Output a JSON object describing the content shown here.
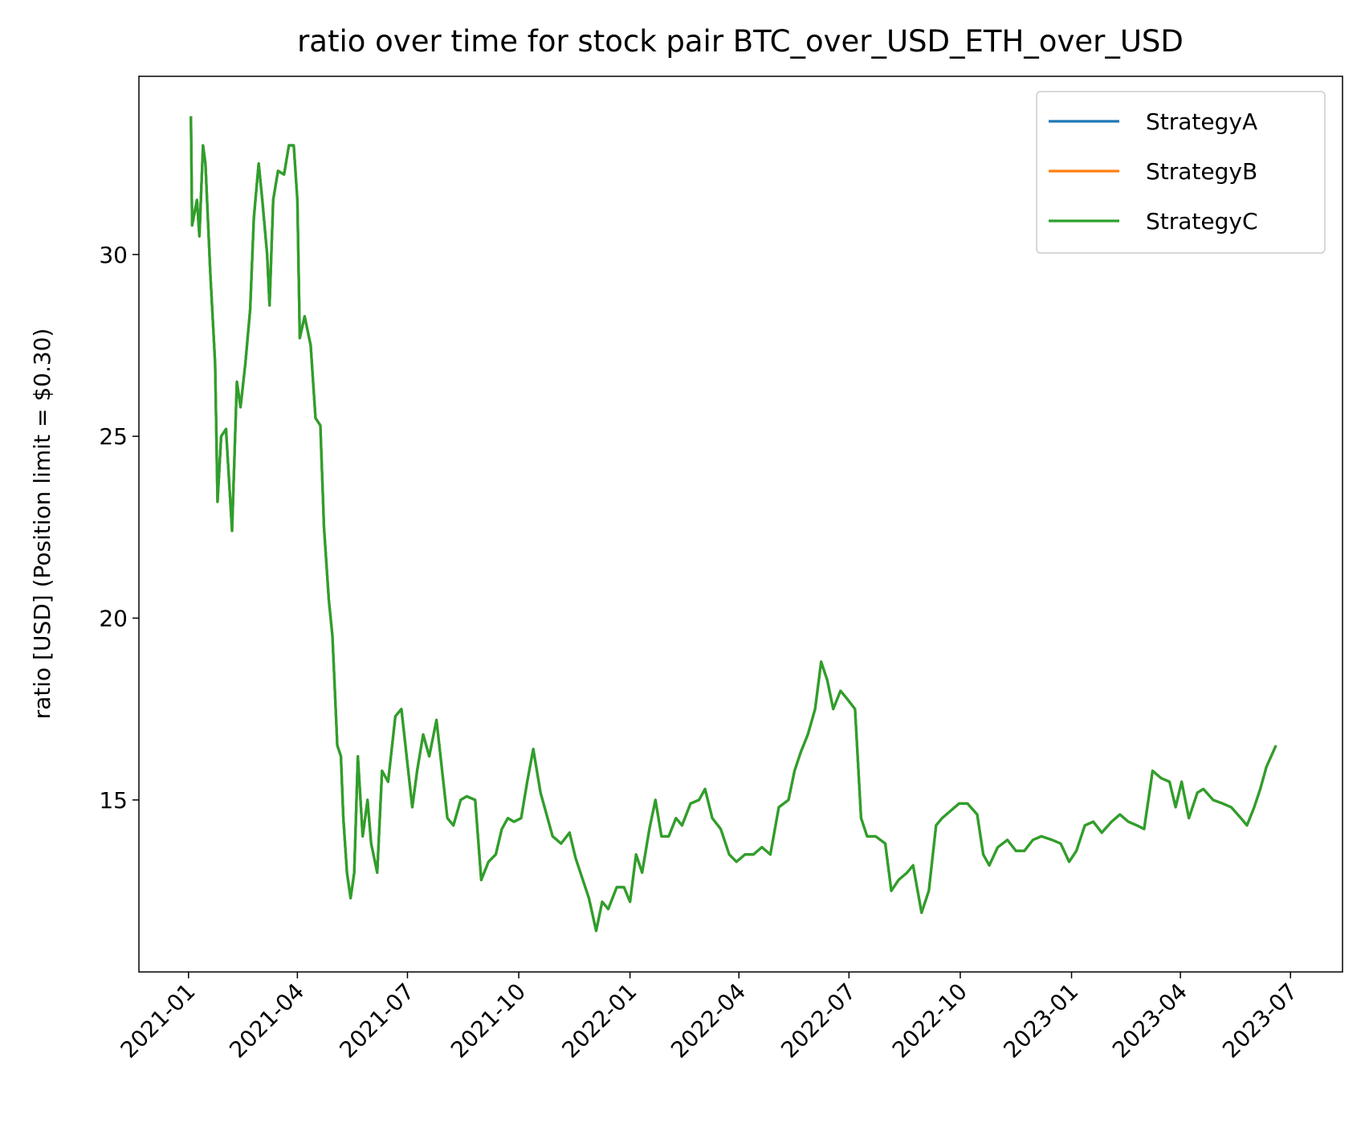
{
  "chart_data": {
    "type": "line",
    "title": "ratio over time for stock pair BTC_over_USD_ETH_over_USD",
    "y_label": "ratio [USD] (Position limit = $0.30)",
    "xlim": [
      "2020-11-21",
      "2023-08-13"
    ],
    "xticks": [
      {
        "value": "2021-01-01",
        "label": "2021-01"
      },
      {
        "value": "2021-04-01",
        "label": "2021-04"
      },
      {
        "value": "2021-07-01",
        "label": "2021-07"
      },
      {
        "value": "2021-10-01",
        "label": "2021-10"
      },
      {
        "value": "2022-01-01",
        "label": "2022-01"
      },
      {
        "value": "2022-04-01",
        "label": "2022-04"
      },
      {
        "value": "2022-07-01",
        "label": "2022-07"
      },
      {
        "value": "2022-10-01",
        "label": "2022-10"
      },
      {
        "value": "2023-01-01",
        "label": "2023-01"
      },
      {
        "value": "2023-04-01",
        "label": "2023-04"
      },
      {
        "value": "2023-07-01",
        "label": "2023-07"
      }
    ],
    "ylim": [
      10.27,
      34.9
    ],
    "yticks": [
      15,
      20,
      25,
      30
    ],
    "grid": false,
    "legend": "upper right",
    "x": [
      "2021-01-03",
      "2021-01-04",
      "2021-01-08",
      "2021-01-10",
      "2021-01-13",
      "2021-01-15",
      "2021-01-19",
      "2021-01-23",
      "2021-01-25",
      "2021-01-28",
      "2021-02-01",
      "2021-02-06",
      "2021-02-10",
      "2021-02-13",
      "2021-02-17",
      "2021-02-21",
      "2021-02-24",
      "2021-02-28",
      "2021-03-03",
      "2021-03-07",
      "2021-03-09",
      "2021-03-12",
      "2021-03-16",
      "2021-03-21",
      "2021-03-25",
      "2021-03-29",
      "2021-04-01",
      "2021-04-03",
      "2021-04-07",
      "2021-04-12",
      "2021-04-16",
      "2021-04-20",
      "2021-04-23",
      "2021-04-27",
      "2021-04-30",
      "2021-05-04",
      "2021-05-07",
      "2021-05-09",
      "2021-05-12",
      "2021-05-15",
      "2021-05-18",
      "2021-05-21",
      "2021-05-25",
      "2021-05-29",
      "2021-06-01",
      "2021-06-06",
      "2021-06-10",
      "2021-06-15",
      "2021-06-21",
      "2021-06-26",
      "2021-06-30",
      "2021-07-05",
      "2021-07-09",
      "2021-07-14",
      "2021-07-19",
      "2021-07-25",
      "2021-07-29",
      "2021-08-03",
      "2021-08-08",
      "2021-08-14",
      "2021-08-19",
      "2021-08-26",
      "2021-08-31",
      "2021-09-06",
      "2021-09-12",
      "2021-09-17",
      "2021-09-22",
      "2021-09-27",
      "2021-10-03",
      "2021-10-08",
      "2021-10-13",
      "2021-10-19",
      "2021-10-24",
      "2021-10-29",
      "2021-11-05",
      "2021-11-12",
      "2021-11-17",
      "2021-11-23",
      "2021-11-28",
      "2021-12-04",
      "2021-12-09",
      "2021-12-14",
      "2021-12-21",
      "2021-12-27",
      "2022-01-01",
      "2022-01-06",
      "2022-01-11",
      "2022-01-17",
      "2022-01-22",
      "2022-01-27",
      "2022-02-02",
      "2022-02-08",
      "2022-02-13",
      "2022-02-20",
      "2022-02-27",
      "2022-03-04",
      "2022-03-10",
      "2022-03-17",
      "2022-03-24",
      "2022-03-30",
      "2022-04-06",
      "2022-04-13",
      "2022-04-20",
      "2022-04-27",
      "2022-05-04",
      "2022-05-12",
      "2022-05-17",
      "2022-05-22",
      "2022-05-28",
      "2022-06-03",
      "2022-06-08",
      "2022-06-13",
      "2022-06-18",
      "2022-06-24",
      "2022-06-29",
      "2022-07-06",
      "2022-07-11",
      "2022-07-16",
      "2022-07-23",
      "2022-07-31",
      "2022-08-05",
      "2022-08-11",
      "2022-08-18",
      "2022-08-23",
      "2022-08-30",
      "2022-09-05",
      "2022-09-11",
      "2022-09-16",
      "2022-09-23",
      "2022-09-30",
      "2022-10-07",
      "2022-10-15",
      "2022-10-20",
      "2022-10-25",
      "2022-11-01",
      "2022-11-09",
      "2022-11-16",
      "2022-11-23",
      "2022-11-30",
      "2022-12-07",
      "2022-12-16",
      "2022-12-23",
      "2022-12-30",
      "2023-01-05",
      "2023-01-12",
      "2023-01-19",
      "2023-01-26",
      "2023-02-03",
      "2023-02-10",
      "2023-02-17",
      "2023-02-24",
      "2023-03-02",
      "2023-03-09",
      "2023-03-16",
      "2023-03-23",
      "2023-03-28",
      "2023-04-02",
      "2023-04-08",
      "2023-04-15",
      "2023-04-20",
      "2023-04-28",
      "2023-05-06",
      "2023-05-13",
      "2023-05-21",
      "2023-05-26",
      "2023-06-01",
      "2023-06-06",
      "2023-06-11",
      "2023-06-19"
    ],
    "series": [
      {
        "name": "StrategyA",
        "color": "#1f77b4",
        "values": [
          33.8,
          30.8,
          31.5,
          30.5,
          33,
          32.5,
          29.5,
          27,
          23.2,
          25,
          25.2,
          22.4,
          26.5,
          25.8,
          27,
          28.5,
          31,
          32.5,
          31.5,
          30,
          28.6,
          31.5,
          32.3,
          32.2,
          33,
          33,
          31.5,
          27.7,
          28.3,
          27.5,
          25.5,
          25.3,
          22.5,
          20.5,
          19.5,
          16.5,
          16.2,
          14.5,
          13,
          12.3,
          13,
          16.2,
          14,
          15,
          13.8,
          13,
          15.8,
          15.5,
          17.3,
          17.5,
          16.3,
          14.8,
          15.8,
          16.8,
          16.2,
          17.2,
          16,
          14.5,
          14.3,
          15,
          15.1,
          15,
          12.8,
          13.3,
          13.5,
          14.2,
          14.5,
          14.4,
          14.5,
          15.5,
          16.4,
          15.2,
          14.6,
          14,
          13.8,
          14.1,
          13.4,
          12.8,
          12.3,
          11.4,
          12.2,
          12,
          12.6,
          12.6,
          12.2,
          13.5,
          13,
          14.2,
          15,
          14,
          14,
          14.5,
          14.3,
          14.9,
          15,
          15.3,
          14.5,
          14.2,
          13.5,
          13.3,
          13.5,
          13.5,
          13.7,
          13.5,
          14.8,
          15,
          15.8,
          16.3,
          16.8,
          17.5,
          18.8,
          18.3,
          17.5,
          18,
          17.8,
          17.5,
          14.5,
          14,
          14,
          13.8,
          12.5,
          12.8,
          13,
          13.2,
          11.9,
          12.5,
          14.3,
          14.5,
          14.7,
          14.9,
          14.9,
          14.6,
          13.5,
          13.2,
          13.7,
          13.9,
          13.6,
          13.6,
          13.9,
          14,
          13.9,
          13.8,
          13.3,
          13.6,
          14.3,
          14.4,
          14.1,
          14.4,
          14.6,
          14.4,
          14.3,
          14.2,
          15.8,
          15.6,
          15.5,
          14.8,
          15.5,
          14.5,
          15.2,
          15.3,
          15,
          14.9,
          14.8,
          14.5,
          14.3,
          14.8,
          15.3,
          15.9,
          16.5
        ]
      },
      {
        "name": "StrategyB",
        "color": "#ff7f0e",
        "values": [
          33.8,
          30.8,
          31.5,
          30.5,
          33,
          32.5,
          29.5,
          27,
          23.2,
          25,
          25.2,
          22.4,
          26.5,
          25.8,
          27,
          28.5,
          31,
          32.5,
          31.5,
          30,
          28.6,
          31.5,
          32.3,
          32.2,
          33,
          33,
          31.5,
          27.7,
          28.3,
          27.5,
          25.5,
          25.3,
          22.5,
          20.5,
          19.5,
          16.5,
          16.2,
          14.5,
          13,
          12.3,
          13,
          16.2,
          14,
          15,
          13.8,
          13,
          15.8,
          15.5,
          17.3,
          17.5,
          16.3,
          14.8,
          15.8,
          16.8,
          16.2,
          17.2,
          16,
          14.5,
          14.3,
          15,
          15.1,
          15,
          12.8,
          13.3,
          13.5,
          14.2,
          14.5,
          14.4,
          14.5,
          15.5,
          16.4,
          15.2,
          14.6,
          14,
          13.8,
          14.1,
          13.4,
          12.8,
          12.3,
          11.4,
          12.2,
          12,
          12.6,
          12.6,
          12.2,
          13.5,
          13,
          14.2,
          15,
          14,
          14,
          14.5,
          14.3,
          14.9,
          15,
          15.3,
          14.5,
          14.2,
          13.5,
          13.3,
          13.5,
          13.5,
          13.7,
          13.5,
          14.8,
          15,
          15.8,
          16.3,
          16.8,
          17.5,
          18.8,
          18.3,
          17.5,
          18,
          17.8,
          17.5,
          14.5,
          14,
          14,
          13.8,
          12.5,
          12.8,
          13,
          13.2,
          11.9,
          12.5,
          14.3,
          14.5,
          14.7,
          14.9,
          14.9,
          14.6,
          13.5,
          13.2,
          13.7,
          13.9,
          13.6,
          13.6,
          13.9,
          14,
          13.9,
          13.8,
          13.3,
          13.6,
          14.3,
          14.4,
          14.1,
          14.4,
          14.6,
          14.4,
          14.3,
          14.2,
          15.8,
          15.6,
          15.5,
          14.8,
          15.5,
          14.5,
          15.2,
          15.3,
          15,
          14.9,
          14.8,
          14.5,
          14.3,
          14.8,
          15.3,
          15.9,
          16.5
        ]
      },
      {
        "name": "StrategyC",
        "color": "#2ca02c",
        "values": [
          33.8,
          30.8,
          31.5,
          30.5,
          33,
          32.5,
          29.5,
          27,
          23.2,
          25,
          25.2,
          22.4,
          26.5,
          25.8,
          27,
          28.5,
          31,
          32.5,
          31.5,
          30,
          28.6,
          31.5,
          32.3,
          32.2,
          33,
          33,
          31.5,
          27.7,
          28.3,
          27.5,
          25.5,
          25.3,
          22.5,
          20.5,
          19.5,
          16.5,
          16.2,
          14.5,
          13,
          12.3,
          13,
          16.2,
          14,
          15,
          13.8,
          13,
          15.8,
          15.5,
          17.3,
          17.5,
          16.3,
          14.8,
          15.8,
          16.8,
          16.2,
          17.2,
          16,
          14.5,
          14.3,
          15,
          15.1,
          15,
          12.8,
          13.3,
          13.5,
          14.2,
          14.5,
          14.4,
          14.5,
          15.5,
          16.4,
          15.2,
          14.6,
          14,
          13.8,
          14.1,
          13.4,
          12.8,
          12.3,
          11.4,
          12.2,
          12,
          12.6,
          12.6,
          12.2,
          13.5,
          13,
          14.2,
          15,
          14,
          14,
          14.5,
          14.3,
          14.9,
          15,
          15.3,
          14.5,
          14.2,
          13.5,
          13.3,
          13.5,
          13.5,
          13.7,
          13.5,
          14.8,
          15,
          15.8,
          16.3,
          16.8,
          17.5,
          18.8,
          18.3,
          17.5,
          18,
          17.8,
          17.5,
          14.5,
          14,
          14,
          13.8,
          12.5,
          12.8,
          13,
          13.2,
          11.9,
          12.5,
          14.3,
          14.5,
          14.7,
          14.9,
          14.9,
          14.6,
          13.5,
          13.2,
          13.7,
          13.9,
          13.6,
          13.6,
          13.9,
          14,
          13.9,
          13.8,
          13.3,
          13.6,
          14.3,
          14.4,
          14.1,
          14.4,
          14.6,
          14.4,
          14.3,
          14.2,
          15.8,
          15.6,
          15.5,
          14.8,
          15.5,
          14.5,
          15.2,
          15.3,
          15,
          14.9,
          14.8,
          14.5,
          14.3,
          14.8,
          15.3,
          15.9,
          16.5
        ]
      }
    ]
  }
}
